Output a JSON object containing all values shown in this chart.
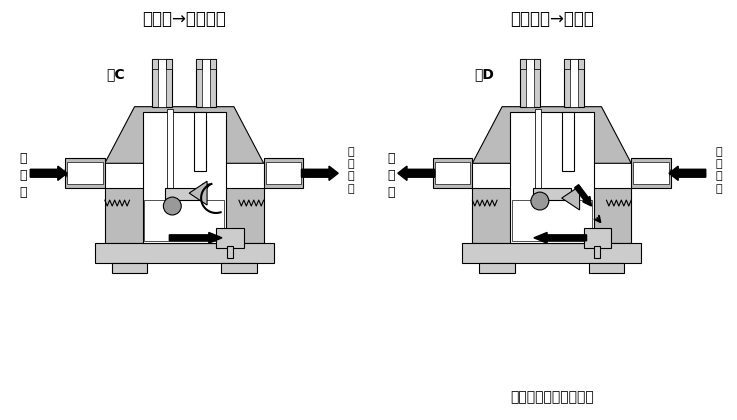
{
  "title_left": "切換弁→シリンダ",
  "title_right": "シリンダ→切換弁",
  "label_figC": "図C",
  "label_figD": "図D",
  "label_stroke": "〈ストロークエンド〉",
  "bg_color": "#ffffff",
  "gray1": "#999999",
  "gray2": "#bbbbbb",
  "gray3": "#cccccc",
  "gray4": "#dddddd",
  "dark": "#333333",
  "black": "#000000",
  "white": "#ffffff"
}
